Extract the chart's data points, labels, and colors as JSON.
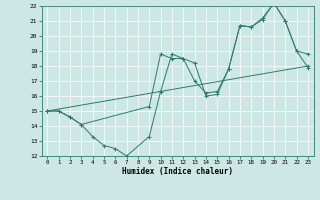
{
  "xlabel": "Humidex (Indice chaleur)",
  "xlim": [
    -0.5,
    23.5
  ],
  "ylim": [
    12,
    22
  ],
  "xticks": [
    0,
    1,
    2,
    3,
    4,
    5,
    6,
    7,
    8,
    9,
    10,
    11,
    12,
    13,
    14,
    15,
    16,
    17,
    18,
    19,
    20,
    21,
    22,
    23
  ],
  "yticks": [
    12,
    13,
    14,
    15,
    16,
    17,
    18,
    19,
    20,
    21,
    22
  ],
  "bg_color": "#cde8e4",
  "line_color": "#2d7a6a",
  "grid_color": "#b0d8d0",
  "series1_x": [
    0,
    1,
    2,
    3,
    4,
    5,
    6,
    7,
    9,
    10,
    11,
    12,
    13,
    14,
    15,
    16,
    17,
    18,
    19,
    20,
    21,
    22,
    23
  ],
  "series1_y": [
    15.0,
    15.0,
    14.6,
    14.1,
    13.3,
    12.7,
    12.5,
    12.0,
    13.3,
    16.3,
    18.8,
    18.5,
    18.2,
    16.0,
    16.1,
    17.8,
    20.7,
    20.6,
    21.2,
    22.2,
    21.0,
    19.0,
    17.9
  ],
  "series2_x": [
    0,
    1,
    2,
    3,
    9,
    10,
    11,
    12,
    13,
    14,
    15,
    16,
    17,
    18,
    19,
    20,
    21,
    22,
    23
  ],
  "series2_y": [
    15.0,
    15.0,
    14.6,
    14.1,
    15.3,
    18.8,
    18.5,
    18.5,
    17.0,
    16.2,
    16.3,
    17.8,
    20.7,
    20.6,
    21.1,
    22.2,
    21.0,
    19.0,
    18.8
  ],
  "series3_x": [
    0,
    23
  ],
  "series3_y": [
    15.0,
    18.0
  ]
}
